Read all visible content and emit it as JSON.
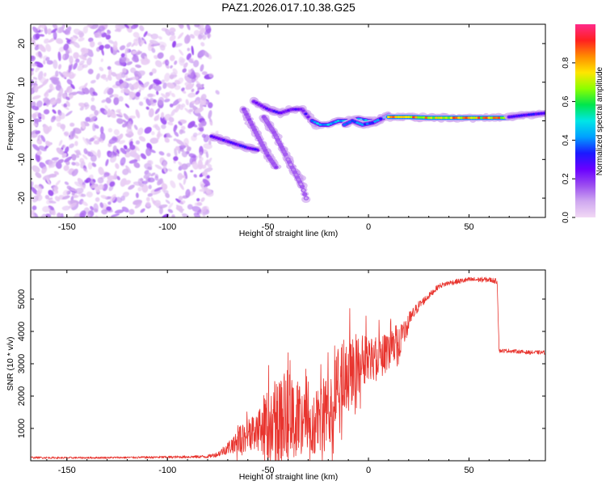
{
  "title": "PAZ1.2026.017.10.38.G25",
  "colors": {
    "snr_line": "#e8342e",
    "spectrum_gradient": [
      "#f2d9f5",
      "#cfa8f0",
      "#9b4cf0",
      "#6a00ff",
      "#1a1aff",
      "#00a0ff",
      "#00e6e6",
      "#00e64d",
      "#8cff00",
      "#ffe600",
      "#ff8c00",
      "#ff2020",
      "#ff2a8a"
    ]
  },
  "chart_data": [
    {
      "type": "heatmap",
      "name": "spectrogram",
      "xlabel": "Height of straight line (km)",
      "ylabel": "Frequency (Hz)",
      "xlim": [
        -168,
        88
      ],
      "ylim": [
        -25,
        25
      ],
      "xticks": [
        -150,
        -100,
        -50,
        0,
        50
      ],
      "xtick_labels": [
        "-150",
        "-100",
        "-50",
        "0",
        "50"
      ],
      "yticks": [
        -20,
        -10,
        0,
        10,
        20
      ],
      "ytick_labels": [
        "-20",
        "-10",
        "0",
        "10",
        "20"
      ],
      "colorbar": {
        "label": "Normalized spectral amplitude",
        "range": [
          0,
          1
        ],
        "ticks": [
          0,
          0.2,
          0.4,
          0.6,
          0.8
        ],
        "tick_labels": [
          "0.0",
          "0.2",
          "0.4",
          "0.6",
          "0.8"
        ]
      },
      "noise_region": {
        "x": [
          -168,
          -78
        ],
        "freq": [
          -25,
          25
        ],
        "amplitude": [
          0.02,
          0.18
        ]
      },
      "tracks": [
        {
          "points": [
            [
              -78,
              -4
            ],
            [
              -72,
              -5
            ],
            [
              -66,
              -6
            ],
            [
              -60,
              -7
            ],
            [
              -55,
              -7.5
            ]
          ],
          "amplitude": 0.32
        },
        {
          "points": [
            [
              -62,
              3
            ],
            [
              -58,
              -1
            ],
            [
              -54,
              -5
            ],
            [
              -50,
              -9
            ],
            [
              -46,
              -12
            ]
          ],
          "amplitude": 0.2
        },
        {
          "points": [
            [
              -52,
              1
            ],
            [
              -47,
              -3
            ],
            [
              -42,
              -8
            ],
            [
              -38,
              -12
            ],
            [
              -34,
              -15
            ]
          ],
          "amplitude": 0.18
        },
        {
          "points": [
            [
              -40,
              -10
            ],
            [
              -36,
              -14
            ],
            [
              -33,
              -17
            ],
            [
              -31,
              -20
            ]
          ],
          "amplitude": 0.12
        },
        {
          "points": [
            [
              -57,
              5
            ],
            [
              -50,
              3
            ],
            [
              -44,
              2
            ],
            [
              -38,
              3
            ],
            [
              -33,
              3
            ],
            [
              -30,
              1
            ],
            [
              -26,
              -1
            ]
          ],
          "amplitude": 0.3
        },
        {
          "points": [
            [
              -28,
              0
            ],
            [
              -24,
              -1
            ],
            [
              -20,
              -1
            ],
            [
              -15,
              0
            ],
            [
              -10,
              0
            ],
            [
              -5,
              0.5
            ],
            [
              0,
              0
            ],
            [
              5,
              0
            ],
            [
              8,
              1
            ],
            [
              10,
              1.5
            ]
          ],
          "amplitude": 0.5
        },
        {
          "points": [
            [
              -12,
              -1
            ],
            [
              -8,
              0
            ],
            [
              -3,
              -1
            ],
            [
              2,
              -0.5
            ],
            [
              6,
              0.5
            ]
          ],
          "amplitude": 0.45
        },
        {
          "points": [
            [
              10,
              1
            ],
            [
              20,
              1
            ],
            [
              30,
              0.8
            ],
            [
              40,
              0.8
            ],
            [
              50,
              0.8
            ],
            [
              60,
              0.8
            ],
            [
              70,
              0.8
            ]
          ],
          "amplitude": 0.9
        },
        {
          "points": [
            [
              70,
              1
            ],
            [
              78,
              1.5
            ],
            [
              84,
              1.8
            ],
            [
              88,
              2
            ]
          ],
          "amplitude": 0.35
        }
      ]
    },
    {
      "type": "line",
      "name": "snr",
      "xlabel": "Height of straight line (km)",
      "ylabel": "SNR (10 * v/v)",
      "xlim": [
        -168,
        88
      ],
      "ylim": [
        0,
        5900
      ],
      "xticks": [
        -150,
        -100,
        -50,
        0,
        50
      ],
      "xtick_labels": [
        "-150",
        "-100",
        "-50",
        "0",
        "50"
      ],
      "yticks": [
        1000,
        2000,
        3000,
        4000,
        5000
      ],
      "ytick_labels": [
        "1000",
        "2000",
        "3000",
        "4000",
        "5000"
      ],
      "series": [
        {
          "name": "SNR",
          "x": [
            -168,
            -150,
            -120,
            -100,
            -90,
            -80,
            -75,
            -70,
            -65,
            -60,
            -55,
            -50,
            -45,
            -40,
            -35,
            -30,
            -25,
            -20,
            -15,
            -10,
            -5,
            0,
            5,
            10,
            15,
            20,
            25,
            30,
            35,
            40,
            50,
            60,
            64,
            65,
            70,
            80,
            88
          ],
          "mean": [
            100,
            90,
            100,
            110,
            120,
            130,
            200,
            400,
            600,
            800,
            900,
            1000,
            1200,
            1400,
            1300,
            1100,
            1200,
            1600,
            2400,
            2700,
            3000,
            3100,
            3200,
            3400,
            3600,
            4300,
            4800,
            5100,
            5400,
            5500,
            5600,
            5600,
            5550,
            3400,
            3400,
            3350,
            3350
          ],
          "fluctuation": [
            30,
            30,
            30,
            40,
            40,
            50,
            80,
            200,
            400,
            500,
            600,
            1200,
            1400,
            1500,
            1100,
            900,
            1000,
            1200,
            1300,
            1200,
            900,
            800,
            700,
            600,
            500,
            300,
            150,
            100,
            80,
            80,
            80,
            80,
            80,
            60,
            60,
            60,
            60
          ]
        }
      ]
    }
  ]
}
